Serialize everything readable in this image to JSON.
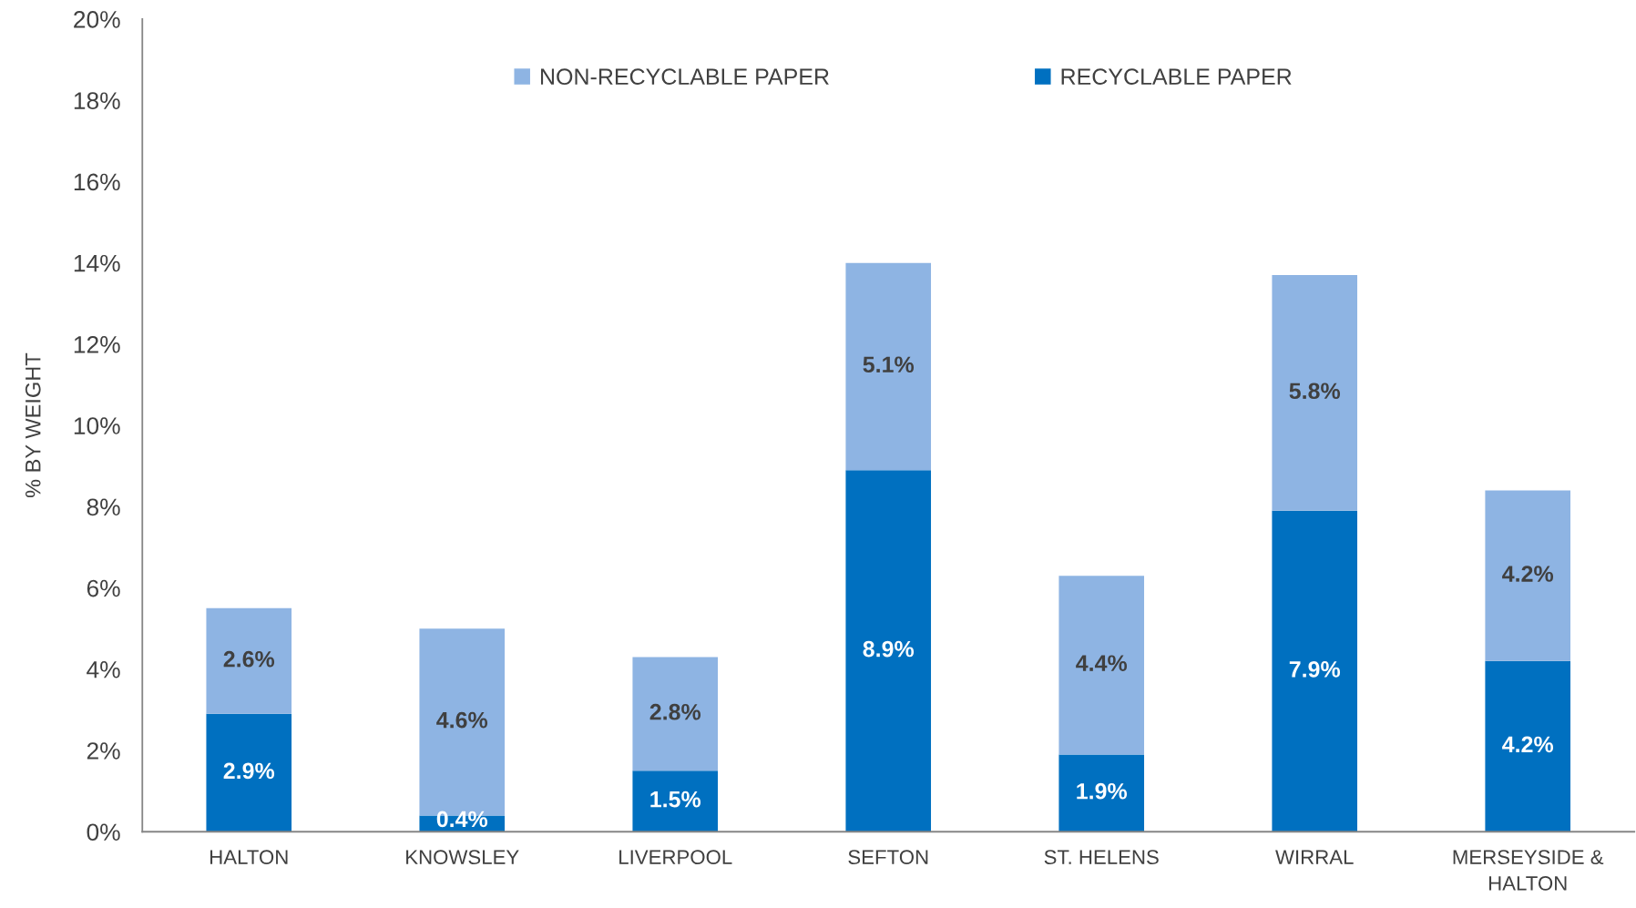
{
  "chart_data": {
    "type": "bar",
    "stacked": true,
    "ylabel": "% BY WEIGHT",
    "categories": [
      "HALTON",
      "KNOWSLEY",
      "LIVERPOOL",
      "SEFTON",
      "ST. HELENS",
      "WIRRAL",
      "MERSEYSIDE &\nHALTON"
    ],
    "series": [
      {
        "name": "RECYCLABLE PAPER",
        "color": "#0070c0",
        "values": [
          2.9,
          0.4,
          1.5,
          8.9,
          1.9,
          7.9,
          4.2
        ],
        "value_labels": [
          "2.9%",
          "0.4%",
          "1.5%",
          "8.9%",
          "1.9%",
          "7.9%",
          "4.2%"
        ]
      },
      {
        "name": "NON-RECYCLABLE PAPER",
        "color": "#8eb4e3",
        "values": [
          2.6,
          4.6,
          2.8,
          5.1,
          4.4,
          5.8,
          4.2
        ],
        "value_labels": [
          "2.6%",
          "4.6%",
          "2.8%",
          "5.1%",
          "4.4%",
          "5.8%",
          "4.2%"
        ]
      }
    ],
    "ylim": [
      0,
      20
    ],
    "yticks": [
      {
        "value": 0,
        "label": "0%"
      },
      {
        "value": 2,
        "label": "2%"
      },
      {
        "value": 4,
        "label": "4%"
      },
      {
        "value": 6,
        "label": "6%"
      },
      {
        "value": 8,
        "label": "8%"
      },
      {
        "value": 10,
        "label": "10%"
      },
      {
        "value": 12,
        "label": "12%"
      },
      {
        "value": 14,
        "label": "14%"
      },
      {
        "value": 16,
        "label": "16%"
      },
      {
        "value": 18,
        "label": "18%"
      },
      {
        "value": 20,
        "label": "20%"
      }
    ],
    "grid": false,
    "legend": "top"
  }
}
